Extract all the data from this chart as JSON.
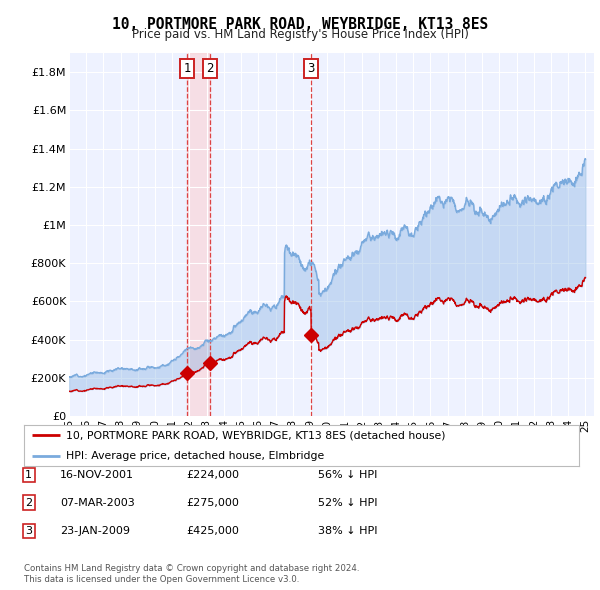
{
  "title": "10, PORTMORE PARK ROAD, WEYBRIDGE, KT13 8ES",
  "subtitle": "Price paid vs. HM Land Registry's House Price Index (HPI)",
  "ylabel_ticks": [
    "£0",
    "£200K",
    "£400K",
    "£600K",
    "£800K",
    "£1M",
    "£1.2M",
    "£1.4M",
    "£1.6M",
    "£1.8M"
  ],
  "ytick_values": [
    0,
    200000,
    400000,
    600000,
    800000,
    1000000,
    1200000,
    1400000,
    1600000,
    1800000
  ],
  "ylim": [
    0,
    1900000
  ],
  "xlim_start": 1995.0,
  "xlim_end": 2025.5,
  "sale_color": "#cc0000",
  "hpi_color": "#7aaadd",
  "fill_color": "#ddeeff",
  "sale_label": "10, PORTMORE PARK ROAD, WEYBRIDGE, KT13 8ES (detached house)",
  "hpi_label": "HPI: Average price, detached house, Elmbridge",
  "transactions": [
    {
      "num": 1,
      "date": "16-NOV-2001",
      "price": 224000,
      "pct": "56%",
      "dir": "↓",
      "year": 2001.875
    },
    {
      "num": 2,
      "date": "07-MAR-2003",
      "price": 275000,
      "pct": "52%",
      "dir": "↓",
      "year": 2003.18
    },
    {
      "num": 3,
      "date": "23-JAN-2009",
      "price": 425000,
      "pct": "38%",
      "dir": "↓",
      "year": 2009.06
    }
  ],
  "footnote1": "Contains HM Land Registry data © Crown copyright and database right 2024.",
  "footnote2": "This data is licensed under the Open Government Licence v3.0.",
  "plot_bg_color": "#eef2ff"
}
